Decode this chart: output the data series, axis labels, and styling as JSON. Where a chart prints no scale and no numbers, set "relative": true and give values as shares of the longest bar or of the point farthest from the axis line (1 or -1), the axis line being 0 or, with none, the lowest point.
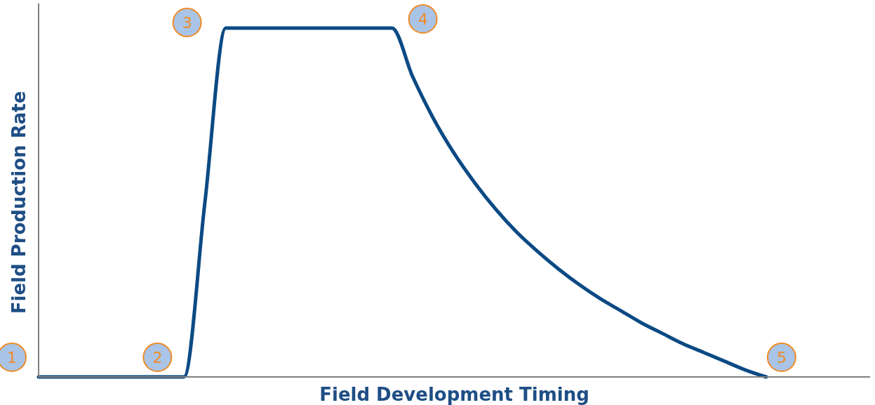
{
  "chart_data": {
    "type": "line",
    "relative": true,
    "xlabel": "Field Development Timing",
    "ylabel": "Field Production Rate",
    "categories": [
      null,
      null,
      null,
      null,
      null,
      null,
      null,
      null,
      null,
      null,
      null,
      null,
      null,
      null,
      null,
      null,
      null,
      null,
      null,
      null,
      null,
      null,
      null,
      null,
      null,
      null,
      null,
      null,
      null,
      null,
      null,
      null,
      null,
      null,
      null,
      null,
      null,
      null,
      null,
      null,
      null
    ],
    "series": [
      {
        "color": "#0b4a84",
        "values": [
          0,
          0,
          0,
          0,
          0,
          0,
          0,
          0,
          0.5,
          1,
          1,
          1,
          1,
          1,
          1,
          1,
          1,
          1,
          0.86,
          0.74,
          0.64,
          0.555,
          0.48,
          0.415,
          0.36,
          0.31,
          0.265,
          0.225,
          0.19,
          0.155,
          0.125,
          0.095,
          0.07,
          0.045,
          0.02,
          0,
          null,
          null,
          null,
          null,
          null
        ]
      }
    ],
    "annotations": [
      "1",
      "2",
      "3",
      "4",
      "5"
    ],
    "marker": "none",
    "line_style": "solid"
  }
}
